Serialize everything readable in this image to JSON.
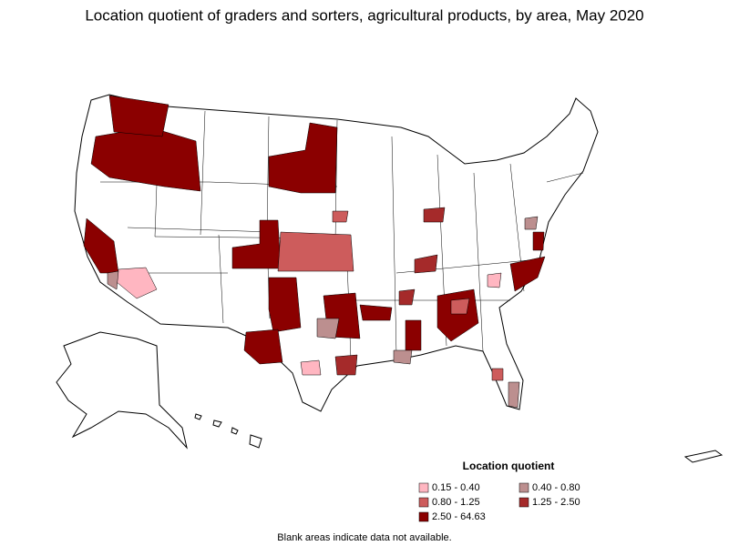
{
  "title": "Location quotient of graders and sorters, agricultural products, by area, May 2020",
  "legend": {
    "title": "Location quotient",
    "items": [
      {
        "label": "0.15 - 0.40",
        "color": "#ffb6c1"
      },
      {
        "label": "0.40 - 0.80",
        "color": "#bc8f8f"
      },
      {
        "label": "0.80 - 1.25",
        "color": "#cd5c5c"
      },
      {
        "label": "1.25 - 2.50",
        "color": "#a52a2a"
      },
      {
        "label": "2.50 - 64.63",
        "color": "#8b0000"
      }
    ]
  },
  "note": "Blank areas indicate data not available."
}
